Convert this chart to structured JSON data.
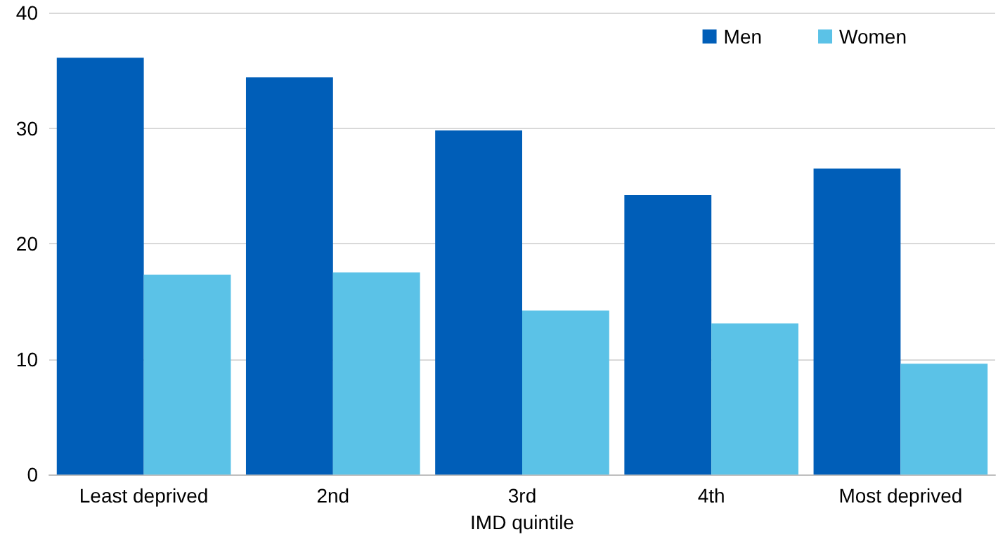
{
  "chart_data": {
    "type": "bar",
    "xlabel": "IMD quintile",
    "categories": [
      "Least deprived",
      "2nd",
      "3rd",
      "4th",
      "Most deprived"
    ],
    "series": [
      {
        "name": "Men",
        "color": "#005eb8",
        "values": [
          36.1,
          34.4,
          29.8,
          24.2,
          26.5
        ]
      },
      {
        "name": "Women",
        "color": "#5bc2e7",
        "values": [
          17.3,
          17.5,
          14.2,
          13.1,
          9.6
        ]
      }
    ],
    "ylim": [
      0,
      40
    ],
    "yticks": [
      0,
      10,
      20,
      30,
      40
    ],
    "grid": "y",
    "legend": "top right"
  }
}
